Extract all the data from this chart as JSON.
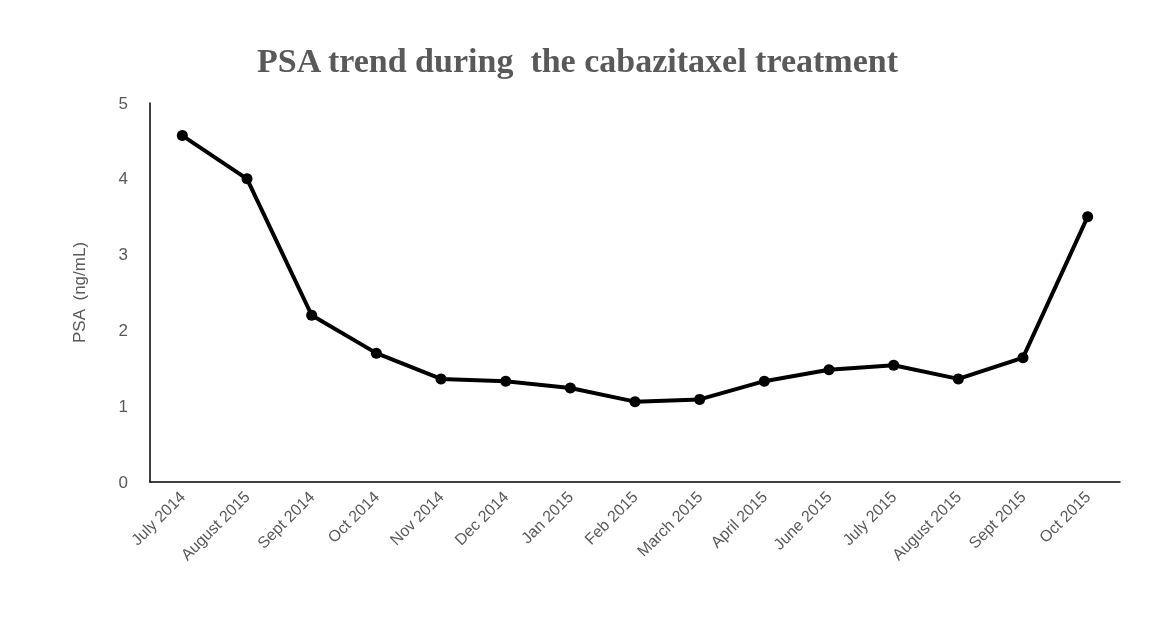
{
  "chart_data": {
    "type": "line",
    "title": "PSA trend during  the cabazitaxel treatment",
    "ylabel": "PSA  (ng/mL)",
    "categories": [
      "July 2014",
      "August 2015",
      "Sept 2014",
      "Oct 2014",
      "Nov 2014",
      "Dec 2014",
      "Jan 2015",
      "Feb 2015",
      "March 2015",
      "April 2015",
      "June 2015",
      "July 2015",
      "August 2015",
      "Sept 2015",
      "Oct 2015"
    ],
    "series": [
      {
        "color": "#000000",
        "values": [
          4.57,
          4.0,
          2.2,
          1.7,
          1.36,
          1.33,
          1.24,
          1.06,
          1.09,
          1.33,
          1.48,
          1.54,
          1.36,
          1.64,
          3.5
        ]
      }
    ],
    "ylim": [
      0,
      5
    ],
    "yticks": [
      0,
      1,
      2,
      3,
      4,
      5
    ],
    "grid": false,
    "marker": "circle",
    "line_style": "solid"
  }
}
